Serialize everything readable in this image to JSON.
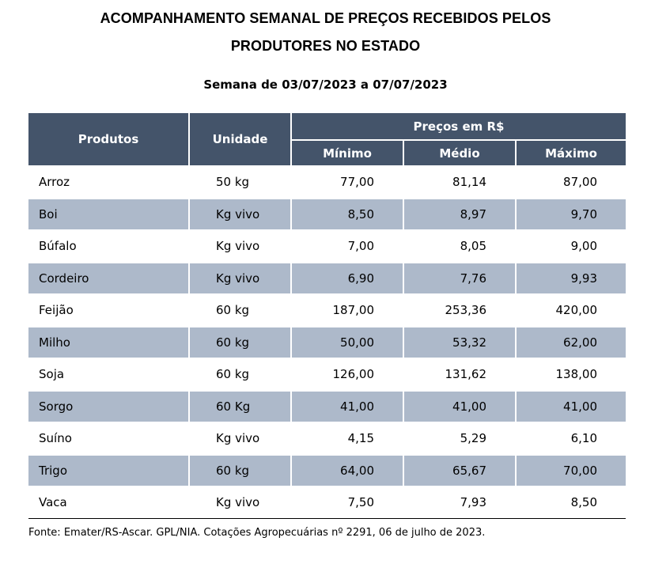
{
  "title_line1": "ACOMPANHAMENTO SEMANAL DE PREÇOS RECEBIDOS PELOS",
  "title_line2": "PRODUTORES NO ESTADO",
  "subtitle": "Semana de 03/07/2023 a 07/07/2023",
  "table": {
    "headers": {
      "produtos": "Produtos",
      "unidade": "Unidade",
      "precos": "Preços em R$",
      "minimo": "Mínimo",
      "medio": "Médio",
      "maximo": "Máximo"
    },
    "rows": [
      {
        "produto": "Arroz",
        "unidade": "50 kg",
        "minimo": "77,00",
        "medio": "81,14",
        "maximo": "87,00"
      },
      {
        "produto": "Boi",
        "unidade": "Kg vivo",
        "minimo": "8,50",
        "medio": "8,97",
        "maximo": "9,70"
      },
      {
        "produto": "Búfalo",
        "unidade": "Kg vivo",
        "minimo": "7,00",
        "medio": "8,05",
        "maximo": "9,00"
      },
      {
        "produto": "Cordeiro",
        "unidade": "Kg vivo",
        "minimo": "6,90",
        "medio": "7,76",
        "maximo": "9,93"
      },
      {
        "produto": "Feijão",
        "unidade": "60 kg",
        "minimo": "187,00",
        "medio": "253,36",
        "maximo": "420,00"
      },
      {
        "produto": "Milho",
        "unidade": "60 kg",
        "minimo": "50,00",
        "medio": "53,32",
        "maximo": "62,00"
      },
      {
        "produto": "Soja",
        "unidade": "60 kg",
        "minimo": "126,00",
        "medio": "131,62",
        "maximo": "138,00"
      },
      {
        "produto": "Sorgo",
        "unidade": "60 Kg",
        "minimo": "41,00",
        "medio": "41,00",
        "maximo": "41,00"
      },
      {
        "produto": "Suíno",
        "unidade": "Kg vivo",
        "minimo": "4,15",
        "medio": "5,29",
        "maximo": "6,10"
      },
      {
        "produto": "Trigo",
        "unidade": "60 kg",
        "minimo": "64,00",
        "medio": "65,67",
        "maximo": "70,00"
      },
      {
        "produto": "Vaca",
        "unidade": "Kg vivo",
        "minimo": "7,50",
        "medio": "7,93",
        "maximo": "8,50"
      }
    ]
  },
  "source": "Fonte: Emater/RS-Ascar. GPL/NIA. Cotações Agropecuárias nº 2291, 06 de julho de 2023.",
  "colors": {
    "header_bg": "#44546a",
    "header_text": "#ffffff",
    "shaded_row": "#adb9ca"
  }
}
